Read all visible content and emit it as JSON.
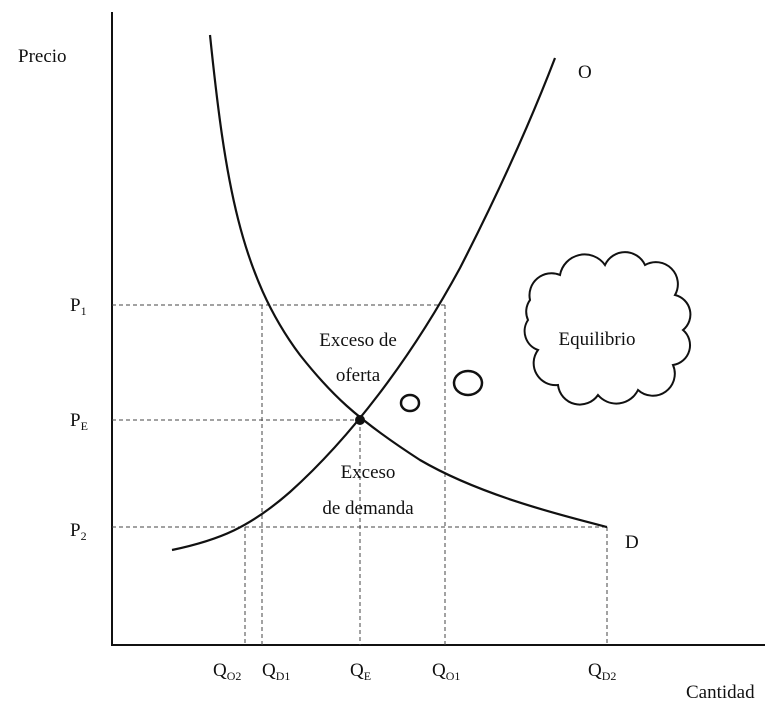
{
  "axis_labels": {
    "y": "Precio",
    "x": "Cantidad"
  },
  "curve_labels": {
    "supply": "O",
    "demand": "D"
  },
  "price_levels": [
    {
      "main": "P",
      "sub": "1"
    },
    {
      "main": "P",
      "sub": "E"
    },
    {
      "main": "P",
      "sub": "2"
    }
  ],
  "quantity_levels": [
    {
      "main": "Q",
      "sub": "O2"
    },
    {
      "main": "Q",
      "sub": "D1"
    },
    {
      "main": "Q",
      "sub": "E"
    },
    {
      "main": "Q",
      "sub": "O1"
    },
    {
      "main": "Q",
      "sub": "D2"
    }
  ],
  "annotations": {
    "excess_supply": [
      "Exceso de",
      "oferta"
    ],
    "excess_demand": [
      "Exceso",
      "de demanda"
    ],
    "thought": "Equilibrio"
  }
}
